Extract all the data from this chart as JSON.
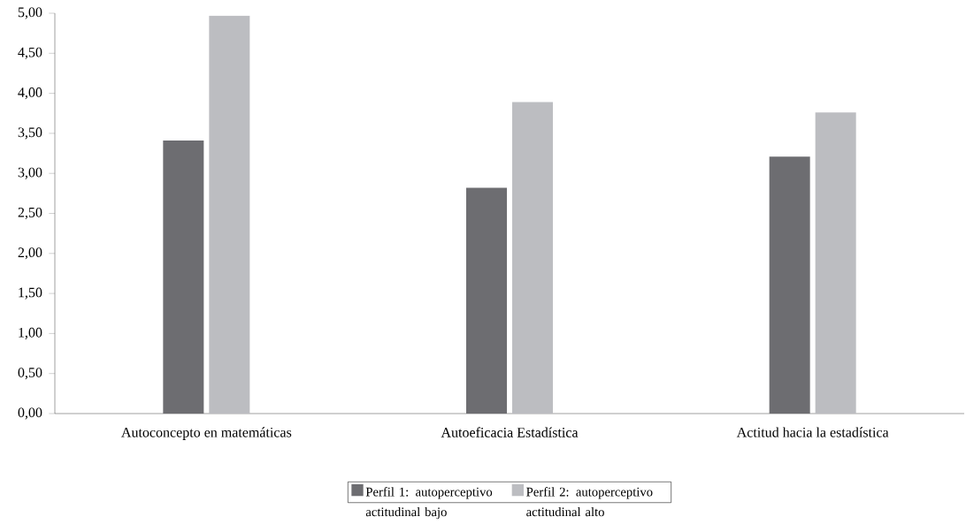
{
  "chart_data": {
    "type": "bar",
    "categories": [
      "Autoconcepto en matemáticas",
      "Autoeficacia Estadística",
      "Actitud hacia la estadística"
    ],
    "series": [
      {
        "name": "Perfil 1: autoperceptivo actitudinal bajo",
        "color": "#6d6d71",
        "values": [
          3.41,
          2.82,
          3.21
        ]
      },
      {
        "name": "Perfil 2: autoperceptivo actitudinal alto",
        "color": "#bcbdc1",
        "values": [
          4.97,
          3.89,
          3.76
        ]
      }
    ],
    "ylim": [
      0,
      5
    ],
    "yticks": [
      {
        "value": 0,
        "label": "0,00"
      },
      {
        "value": 0.5,
        "label": "0,50"
      },
      {
        "value": 1,
        "label": "1,00"
      },
      {
        "value": 1.5,
        "label": "1,50"
      },
      {
        "value": 2,
        "label": "2,00"
      },
      {
        "value": 2.5,
        "label": "2,50"
      },
      {
        "value": 3,
        "label": "3,00"
      },
      {
        "value": 3.5,
        "label": "3,50"
      },
      {
        "value": 4,
        "label": "4,00"
      },
      {
        "value": 4.5,
        "label": "4,50"
      },
      {
        "value": 5,
        "label": "5,00"
      }
    ],
    "grid": false,
    "legend": "bottom"
  }
}
